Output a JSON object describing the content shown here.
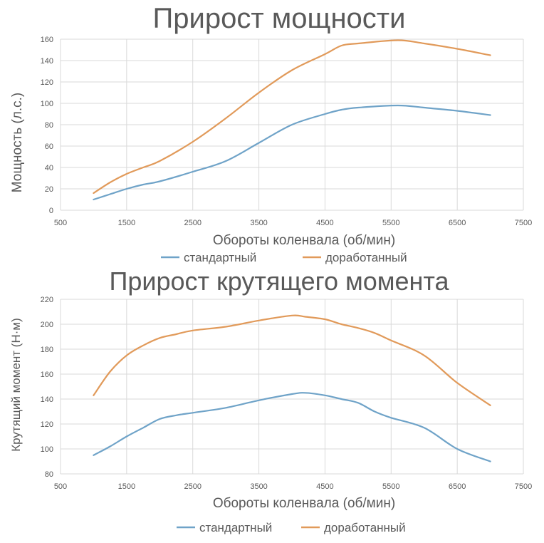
{
  "colors": {
    "series_standard": "#6fa3c8",
    "series_modified": "#e19a5a",
    "grid": "#d9d9d9",
    "axis": "#bfbfbf",
    "text": "#595959"
  },
  "chart_data": [
    {
      "type": "line",
      "title": "Прирост мощности",
      "xlabel": "Обороты коленвала (об/мин)",
      "ylabel": "Мощность (л.с.)",
      "xlim": [
        500,
        7500
      ],
      "ylim": [
        0,
        160
      ],
      "xticks": [
        500,
        1500,
        2500,
        3500,
        4500,
        5500,
        6500,
        7500
      ],
      "yticks": [
        0,
        20,
        40,
        60,
        80,
        100,
        120,
        140,
        160
      ],
      "grid": true,
      "legend_position": "bottom",
      "series": [
        {
          "name": "стандартный",
          "color_key": "series_standard",
          "x": [
            1000,
            1250,
            1500,
            1750,
            2000,
            2500,
            3000,
            3500,
            4000,
            4500,
            4750,
            5000,
            5600,
            6000,
            6500,
            7000
          ],
          "y": [
            10,
            15,
            20,
            24,
            27,
            36,
            46,
            63,
            80,
            90,
            94,
            96,
            98,
            96,
            93,
            89
          ]
        },
        {
          "name": "доработанный",
          "color_key": "series_modified",
          "x": [
            1000,
            1250,
            1500,
            1750,
            2000,
            2500,
            3000,
            3500,
            4000,
            4500,
            4750,
            5000,
            5600,
            6000,
            6500,
            7000
          ],
          "y": [
            16,
            26,
            34,
            40,
            46,
            64,
            86,
            110,
            131,
            146,
            154,
            156,
            159,
            156,
            151,
            145
          ]
        }
      ]
    },
    {
      "type": "line",
      "title": "Прирост крутящего момента",
      "xlabel": "Обороты коленвала (об/мин)",
      "ylabel": "Крутящий момент (Н·м)",
      "xlim": [
        500,
        7500
      ],
      "ylim": [
        80,
        220
      ],
      "xticks": [
        500,
        1500,
        2500,
        3500,
        4500,
        5500,
        6500,
        7500
      ],
      "yticks": [
        80,
        100,
        120,
        140,
        160,
        180,
        200,
        220
      ],
      "grid": true,
      "legend_position": "bottom",
      "series": [
        {
          "name": "стандартный",
          "color_key": "series_standard",
          "x": [
            1000,
            1250,
            1500,
            1750,
            2000,
            2250,
            2500,
            3000,
            3500,
            4000,
            4200,
            4500,
            4750,
            5000,
            5250,
            5500,
            6000,
            6500,
            7000
          ],
          "y": [
            95,
            102,
            110,
            117,
            124,
            127,
            129,
            133,
            139,
            144,
            145,
            143,
            140,
            137,
            130,
            125,
            117,
            100,
            90
          ]
        },
        {
          "name": "доработанный",
          "color_key": "series_modified",
          "x": [
            1000,
            1250,
            1500,
            1750,
            2000,
            2250,
            2500,
            3000,
            3500,
            4000,
            4200,
            4500,
            4750,
            5000,
            5250,
            5500,
            6000,
            6500,
            7000
          ],
          "y": [
            143,
            162,
            175,
            183,
            189,
            192,
            195,
            198,
            203,
            207,
            206,
            204,
            200,
            197,
            193,
            187,
            175,
            153,
            135
          ]
        }
      ]
    }
  ]
}
